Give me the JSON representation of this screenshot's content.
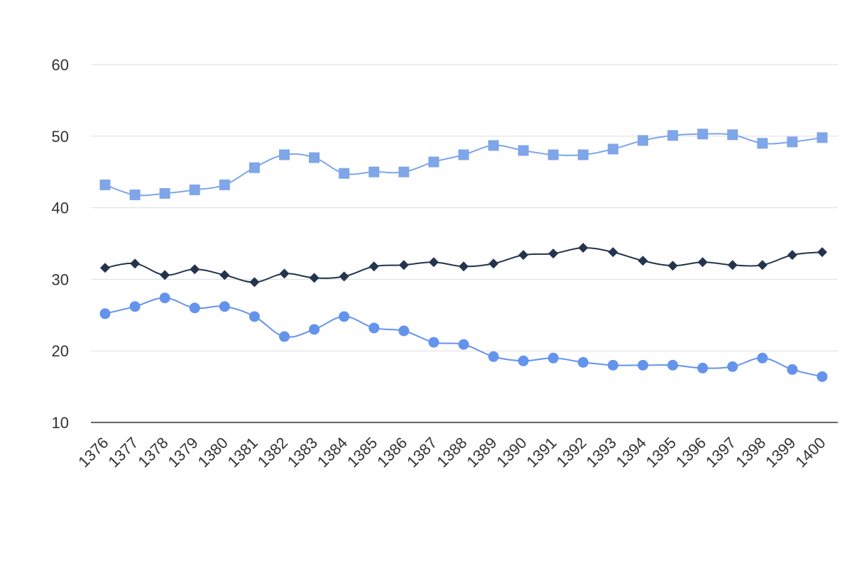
{
  "chart_data": {
    "type": "line",
    "title": "",
    "xlabel": "",
    "ylabel": "",
    "x": [
      "1376",
      "1377",
      "1378",
      "1379",
      "1380",
      "1381",
      "1382",
      "1383",
      "1384",
      "1385",
      "1386",
      "1387",
      "1388",
      "1389",
      "1390",
      "1391",
      "1392",
      "1393",
      "1394",
      "1395",
      "1396",
      "1397",
      "1398",
      "1399",
      "1400"
    ],
    "ylim": [
      10,
      60
    ],
    "yticks": [
      10,
      20,
      30,
      40,
      50,
      60
    ],
    "grid": true,
    "legend": "none",
    "smooth": true,
    "series": [
      {
        "marker": "square",
        "color": "#7ea6e8",
        "values": [
          43.2,
          41.8,
          42.0,
          42.5,
          43.2,
          45.6,
          47.4,
          47.0,
          44.8,
          45.0,
          45.0,
          46.4,
          47.4,
          48.7,
          48.0,
          47.4,
          47.4,
          48.2,
          49.4,
          50.1,
          50.3,
          50.2,
          49.0,
          49.2,
          49.8
        ]
      },
      {
        "marker": "diamond",
        "color": "#24344d",
        "values": [
          31.6,
          32.2,
          30.6,
          31.4,
          30.6,
          29.6,
          30.8,
          30.2,
          30.4,
          31.8,
          32.0,
          32.4,
          31.8,
          32.2,
          33.4,
          33.6,
          34.4,
          33.8,
          32.6,
          31.9,
          32.4,
          32.0,
          32.0,
          33.4,
          33.8
        ]
      },
      {
        "marker": "circle",
        "color": "#6493ec",
        "values": [
          25.2,
          26.2,
          27.4,
          26.0,
          26.2,
          24.8,
          22.0,
          23.0,
          24.8,
          23.2,
          22.8,
          21.2,
          20.9,
          19.2,
          18.6,
          19.0,
          18.4,
          18.0,
          18.0,
          18.0,
          17.6,
          17.8,
          19.0,
          17.4,
          16.4
        ]
      }
    ]
  }
}
